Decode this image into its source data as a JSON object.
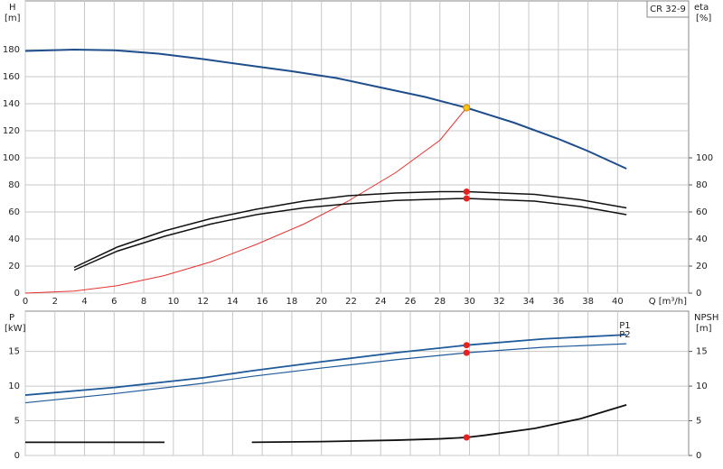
{
  "chart_data": [
    {
      "type": "line",
      "y_label": "H",
      "y_unit": "[m]",
      "y2_label": "eta",
      "y2_unit": "[%]",
      "x_label": "Q [m³/h]",
      "model": "CR 32-9",
      "xlim": [
        0,
        44.8
      ],
      "xticks": [
        0,
        2,
        4,
        6,
        8,
        10,
        12,
        14,
        16,
        18,
        20,
        22,
        24,
        26,
        28,
        30,
        32,
        34,
        36,
        38,
        40
      ],
      "ylim": [
        0,
        216
      ],
      "yticks": [
        0,
        20,
        40,
        60,
        80,
        100,
        120,
        140,
        160,
        180
      ],
      "y2lim": [
        0,
        216
      ],
      "y2ticks": [
        0,
        20,
        40,
        60,
        80,
        100
      ],
      "grid": true,
      "series": [
        {
          "color": "#1f4e8c",
          "width": 2,
          "x": [
            0,
            3.3,
            6,
            9,
            12,
            15.3,
            18,
            21,
            24,
            27,
            29.8,
            33,
            36,
            38,
            40.6
          ],
          "values": [
            179,
            180,
            179.5,
            177,
            173,
            168,
            164,
            159,
            152,
            145,
            137,
            126,
            114,
            105,
            92
          ]
        },
        {
          "color": "#e83030",
          "width": 1,
          "x": [
            0,
            3.3,
            6.2,
            9.4,
            12.5,
            15.6,
            18.8,
            21.8,
            25,
            28,
            29.8
          ],
          "values": [
            0,
            1.5,
            5.5,
            13,
            23,
            36,
            51,
            68,
            89,
            113,
            137
          ]
        },
        {
          "color": "#111111",
          "width": 1.5,
          "axis": "y2",
          "x": [
            3.3,
            6.2,
            9.4,
            12.5,
            15.6,
            18.8,
            21.8,
            25,
            28,
            29.8,
            34.4,
            37.5,
            40.6
          ],
          "values": [
            19,
            34,
            46,
            55,
            62,
            68,
            72,
            74,
            75,
            75,
            73,
            69,
            63
          ]
        },
        {
          "color": "#111111",
          "width": 1.5,
          "axis": "y2",
          "x": [
            3.3,
            6.2,
            9.4,
            12.5,
            15.6,
            18.8,
            21.8,
            25,
            28,
            29.8,
            34.4,
            37.5,
            40.6
          ],
          "values": [
            17,
            31,
            42,
            51,
            58,
            63,
            66,
            68.5,
            69.5,
            70,
            68,
            64,
            58
          ]
        }
      ],
      "markers": [
        {
          "x": 29.8,
          "y": 137,
          "color": "#f5c518"
        },
        {
          "x": 29.8,
          "y": 75,
          "axis": "y2",
          "color": "#e82020"
        },
        {
          "x": 29.8,
          "y": 70,
          "axis": "y2",
          "color": "#e82020"
        }
      ]
    },
    {
      "type": "line",
      "y_label": "P",
      "y_unit": "[kW]",
      "y2_label": "NPSH",
      "y2_unit": "[m]",
      "xlim": [
        0,
        44.8
      ],
      "xticks": [
        0,
        2,
        4,
        6,
        8,
        10,
        12,
        14,
        16,
        18,
        20,
        22,
        24,
        26,
        28,
        30,
        32,
        34,
        36,
        38,
        40
      ],
      "ylim": [
        0,
        20.8
      ],
      "yticks": [
        0,
        5,
        10,
        15
      ],
      "y2lim": [
        0,
        20.8
      ],
      "y2ticks": [
        0,
        5,
        10,
        15
      ],
      "grid": true,
      "series": [
        {
          "name": "P1",
          "color": "#1f5a9a",
          "width": 1.8,
          "x": [
            0,
            6,
            12,
            15.3,
            20,
            25,
            29.8,
            35,
            40.6
          ],
          "values": [
            8.7,
            9.8,
            11.2,
            12.2,
            13.5,
            14.8,
            15.9,
            16.8,
            17.4
          ]
        },
        {
          "name": "P2",
          "color": "#1f5a9a",
          "width": 1.2,
          "x": [
            0,
            6,
            12,
            15.3,
            20,
            25,
            29.8,
            35,
            40.6
          ],
          "values": [
            7.6,
            8.9,
            10.4,
            11.4,
            12.6,
            13.8,
            14.8,
            15.6,
            16.1
          ]
        },
        {
          "color": "#111111",
          "width": 1.8,
          "axis": "y2",
          "x": [
            0,
            9.4,
            12,
            15.3,
            20,
            25,
            28,
            29.8,
            31,
            34.4,
            37.5,
            40.6
          ],
          "values": [
            1.9,
            1.9,
            null,
            1.9,
            2,
            2.2,
            2.4,
            2.6,
            2.9,
            3.9,
            5.3,
            7.3
          ]
        }
      ],
      "markers": [
        {
          "x": 29.8,
          "y": 15.9,
          "color": "#e82020"
        },
        {
          "x": 29.8,
          "y": 14.8,
          "color": "#e82020"
        },
        {
          "x": 29.8,
          "y": 2.6,
          "axis": "y2",
          "color": "#e82020"
        }
      ]
    }
  ]
}
